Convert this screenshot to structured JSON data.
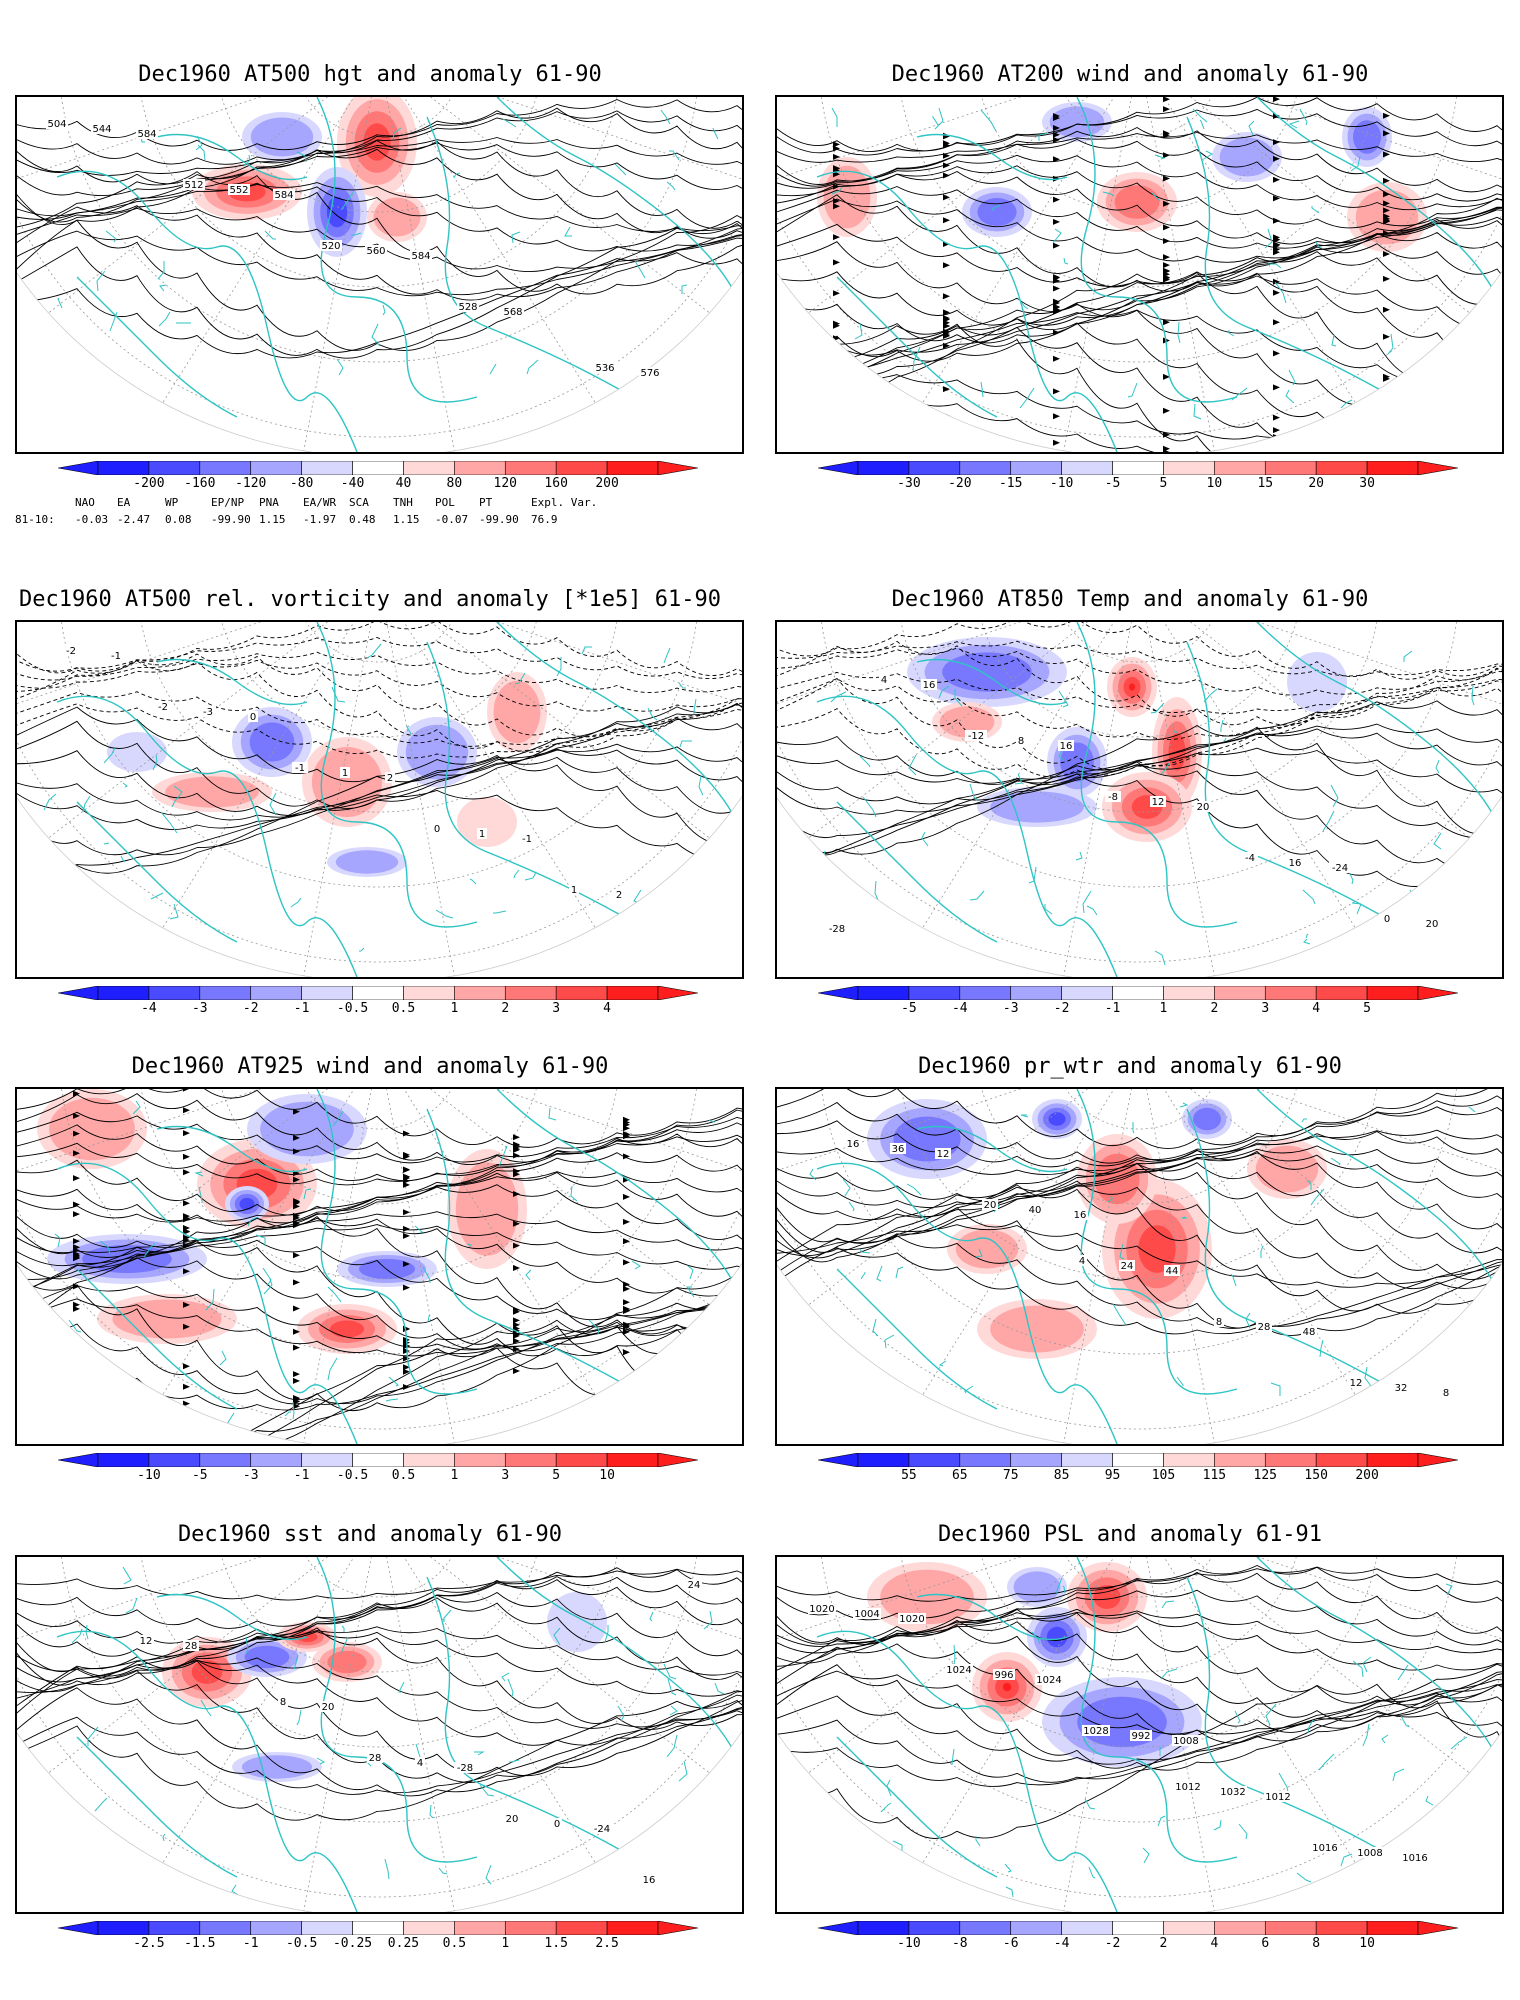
{
  "panels": [
    {
      "title": "Dec1960 AT500 hgt and anomaly 61-90",
      "colorbar": [
        "-200",
        "-160",
        "-120",
        "-80",
        "-40",
        "40",
        "80",
        "120",
        "160",
        "200"
      ],
      "contour_labels": [
        "504",
        "512",
        "520",
        "528",
        "536",
        "544",
        "552",
        "560",
        "568",
        "576",
        "584",
        "584",
        "584"
      ],
      "shading": "hgt"
    },
    {
      "title": "Dec1960 AT200 wind and anomaly 61-90",
      "colorbar": [
        "-30",
        "-20",
        "-15",
        "-10",
        "-5",
        "5",
        "10",
        "15",
        "20",
        "30"
      ],
      "contour_labels": [],
      "shading": "wind"
    },
    {
      "title": "Dec1960 AT500 rel. vorticity and anomaly [*1e5] 61-90",
      "colorbar": [
        "-4",
        "-3",
        "-2",
        "-1",
        "-0.5",
        "0.5",
        "1",
        "2",
        "3",
        "4"
      ],
      "contour_labels": [
        "-2",
        "-1",
        "0",
        "1",
        "-2",
        "-3",
        "1",
        "1",
        "2",
        "-1",
        "0",
        "2",
        "-1"
      ],
      "shading": "vort"
    },
    {
      "title": "Dec1960 AT850 Temp and anomaly 61-90",
      "colorbar": [
        "-5",
        "-4",
        "-3",
        "-2",
        "-1",
        "1",
        "2",
        "3",
        "4",
        "5"
      ],
      "contour_labels": [
        "-12",
        "-8",
        "-4",
        "0",
        "4",
        "8",
        "12",
        "16",
        "20",
        "16",
        "16",
        "20",
        "-24",
        "-28"
      ],
      "shading": "temp"
    },
    {
      "title": "Dec1960 AT925 wind and anomaly 61-90",
      "colorbar": [
        "-10",
        "-5",
        "-3",
        "-1",
        "-0.5",
        "0.5",
        "1",
        "3",
        "5",
        "10"
      ],
      "contour_labels": [],
      "shading": "wind925"
    },
    {
      "title": "Dec1960 pr_wtr and anomaly 61-90",
      "colorbar": [
        "55",
        "65",
        "75",
        "85",
        "95",
        "105",
        "115",
        "125",
        "150",
        "200"
      ],
      "contour_labels": [
        "4",
        "8",
        "12",
        "16",
        "20",
        "24",
        "28",
        "32",
        "36",
        "40",
        "44",
        "48",
        "8",
        "12",
        "16"
      ],
      "shading": "prw"
    },
    {
      "title": "Dec1960 sst and anomaly 61-90",
      "colorbar": [
        "-2.5",
        "-1.5",
        "-1",
        "-0.5",
        "-0.25",
        "0.25",
        "0.5",
        "1",
        "1.5",
        "2.5"
      ],
      "contour_labels": [
        "28",
        "20",
        "16",
        "12",
        "8",
        "4",
        "0",
        "24",
        "28",
        "20",
        "-28",
        "-24"
      ],
      "shading": "sst"
    },
    {
      "title": "Dec1960 PSL and anomaly 61-91",
      "colorbar": [
        "-10",
        "-8",
        "-6",
        "-4",
        "-2",
        "2",
        "4",
        "6",
        "8",
        "10"
      ],
      "contour_labels": [
        "1012",
        "1016",
        "1020",
        "1024",
        "1028",
        "1032",
        "1008",
        "1004",
        "996",
        "992",
        "1012",
        "1016",
        "1020",
        "1024",
        "1008"
      ],
      "shading": "psl"
    }
  ],
  "indices": {
    "headers": [
      "NAO",
      "EA",
      "WP",
      "EP/NP",
      "PNA",
      "EA/WR",
      "SCA",
      "TNH",
      "POL",
      "PT",
      "Expl. Var."
    ],
    "row_label": "81-10:",
    "values": [
      "-0.03",
      "-2.47",
      "0.08",
      "-99.90",
      "1.15",
      "-1.97",
      "0.48",
      "1.15",
      "-0.07",
      "-99.90",
      "76.9"
    ]
  },
  "colors": {
    "coast": "#2ec4c4",
    "blues": [
      "#1e1eff",
      "#4a4aff",
      "#7878ff",
      "#a6a6ff",
      "#d8d8ff"
    ],
    "reds": [
      "#ffd8d8",
      "#ffa6a6",
      "#ff7878",
      "#ff4a4a",
      "#ff1e1e"
    ],
    "contour": "#000000",
    "grid": "#999999"
  }
}
